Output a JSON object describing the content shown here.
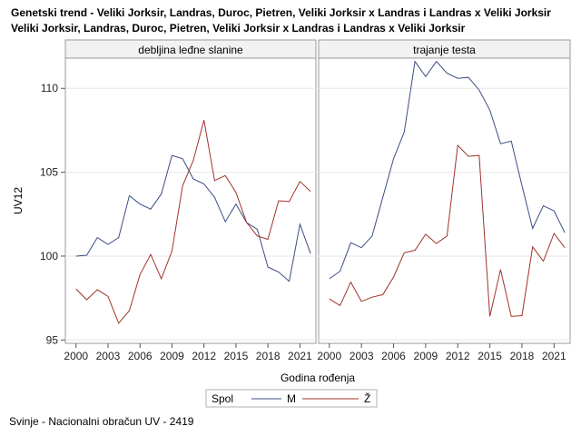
{
  "title_line1": "Genetski trend - Veliki Jorksir, Landras, Duroc, Pietren, Veliki Jorksir x Landras i Landras x Veliki Jorksir",
  "title_line2": "Veliki Jorksir, Landras, Duroc, Pietren, Veliki Jorksir x Landras i Landras x Veliki Jorksir",
  "footnote": "Svinje - Nacionalni obračun UV - 2419",
  "colors": {
    "M": "#3b4d85",
    "Z": "#a0322a",
    "grid": "#e6e6e6",
    "frame": "#999999",
    "header_bg": "#f2f2f2"
  },
  "chart_data": {
    "type": "line",
    "xlabel": "Godina rođenja",
    "ylabel": "UV12",
    "xlim": [
      1999,
      2022.5
    ],
    "ylim": [
      94.8,
      111.8
    ],
    "x_ticks": [
      2000,
      2003,
      2006,
      2009,
      2012,
      2015,
      2018,
      2021
    ],
    "y_ticks": [
      95,
      100,
      105,
      110
    ],
    "legend": {
      "title": "Spol",
      "entries": [
        "M",
        "Ž"
      ],
      "placement": "bottom-center"
    },
    "x": [
      2000,
      2001,
      2002,
      2003,
      2004,
      2005,
      2006,
      2007,
      2008,
      2009,
      2010,
      2011,
      2012,
      2013,
      2014,
      2015,
      2016,
      2017,
      2018,
      2019,
      2020,
      2021,
      2022
    ],
    "panels": [
      {
        "label": "debljina leđne slanine",
        "series": [
          {
            "name": "M",
            "values": [
              100.0,
              100.05,
              101.1,
              100.7,
              101.1,
              103.6,
              103.1,
              102.8,
              103.7,
              106.0,
              105.8,
              104.6,
              104.3,
              103.5,
              102.05,
              103.1,
              102.0,
              101.6,
              99.35,
              99.05,
              98.5,
              101.9,
              100.15
            ]
          },
          {
            "name": "Ž",
            "values": [
              98.05,
              97.4,
              98.0,
              97.6,
              96.0,
              96.75,
              98.9,
              100.1,
              98.65,
              100.3,
              104.2,
              105.7,
              108.1,
              104.5,
              104.8,
              103.8,
              102.0,
              101.2,
              101.0,
              103.3,
              103.25,
              104.45,
              103.85
            ]
          }
        ]
      },
      {
        "label": "trajanje testa",
        "series": [
          {
            "name": "M",
            "values": [
              98.65,
              99.1,
              100.8,
              100.5,
              101.2,
              103.5,
              105.8,
              107.4,
              111.6,
              110.7,
              111.6,
              110.9,
              110.6,
              110.65,
              109.9,
              108.7,
              106.7,
              106.85,
              104.2,
              101.65,
              103.0,
              102.7,
              101.4
            ]
          },
          {
            "name": "Ž",
            "values": [
              97.45,
              97.05,
              98.45,
              97.3,
              97.55,
              97.7,
              98.75,
              100.2,
              100.35,
              101.3,
              100.75,
              101.2,
              106.6,
              105.95,
              106.0,
              96.4,
              99.2,
              96.4,
              96.45,
              100.55,
              99.7,
              101.35,
              100.5
            ]
          }
        ]
      }
    ]
  }
}
